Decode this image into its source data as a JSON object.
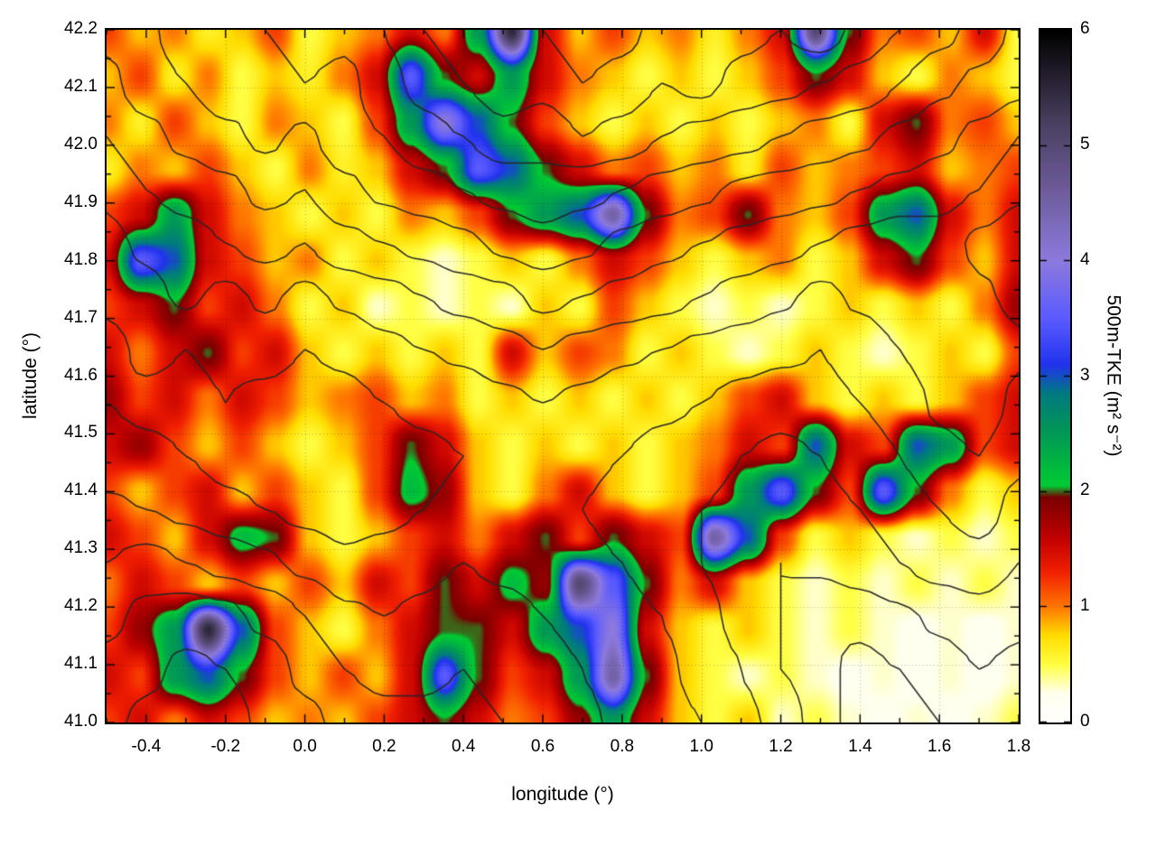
{
  "figure": {
    "background": "#ffffff"
  },
  "chart_data": {
    "type": "heatmap",
    "title": "",
    "xlabel": "longitude (°)",
    "ylabel": "latitude (°)",
    "x_range": [
      -0.5,
      1.8
    ],
    "y_range": [
      41.0,
      42.2
    ],
    "x_ticks": [
      -0.4,
      -0.2,
      0.0,
      0.2,
      0.4,
      0.6,
      0.8,
      1.0,
      1.2,
      1.4,
      1.6,
      1.8
    ],
    "x_tick_labels": [
      "-0.4",
      "-0.2",
      "0.0",
      "0.2",
      "0.4",
      "0.6",
      "0.8",
      "1.0",
      "1.2",
      "1.4",
      "1.6",
      "1.8"
    ],
    "y_ticks": [
      41.0,
      41.1,
      41.2,
      41.3,
      41.4,
      41.5,
      41.6,
      41.7,
      41.8,
      41.9,
      42.0,
      42.1,
      42.2
    ],
    "y_tick_labels": [
      "41.0",
      "41.1",
      "41.2",
      "41.3",
      "41.4",
      "41.5",
      "41.6",
      "41.7",
      "41.8",
      "41.9",
      "42.0",
      "42.1",
      "42.2"
    ],
    "grid_lines": "dotted",
    "legend_position": "colorbar-right",
    "colorbar": {
      "label": "500m-TKE (m² s⁻²)",
      "range": [
        0,
        6
      ],
      "ticks": [
        0,
        1,
        2,
        3,
        4,
        5,
        6
      ],
      "tick_labels": [
        "0",
        "1",
        "2",
        "3",
        "4",
        "5",
        "6"
      ]
    },
    "colormap_stops": [
      [
        0.0,
        "#ffffff"
      ],
      [
        0.25,
        "#ffffee"
      ],
      [
        0.5,
        "#ffff44"
      ],
      [
        0.75,
        "#ffdd00"
      ],
      [
        1.0,
        "#ff7700"
      ],
      [
        1.3,
        "#f22000"
      ],
      [
        1.6,
        "#c00000"
      ],
      [
        1.95,
        "#7a0000"
      ],
      [
        2.05,
        "#00cc33"
      ],
      [
        2.5,
        "#009955"
      ],
      [
        2.85,
        "#007a80"
      ],
      [
        3.1,
        "#2233ee"
      ],
      [
        3.5,
        "#5b5bff"
      ],
      [
        4.0,
        "#8d7ade"
      ],
      [
        4.6,
        "#6f5c9c"
      ],
      [
        5.2,
        "#4a3f60"
      ],
      [
        6.0,
        "#000000"
      ]
    ],
    "tke_grid": {
      "description": "500m turbulent kinetic energy (m2 s-2), row-major; rows from north (42.2°) to south (41.0°), columns from west (-0.5°) to east (1.8°); values estimated from the plot",
      "nx": 28,
      "ny": 16,
      "values": [
        [
          1.2,
          0.8,
          1.0,
          0.6,
          0.8,
          1.2,
          0.5,
          0.8,
          1.0,
          1.5,
          1.0,
          2.5,
          5.5,
          1.5,
          0.8,
          1.2,
          0.8,
          1.0,
          0.6,
          1.0,
          1.5,
          5.0,
          2.0,
          1.0,
          1.2,
          0.8,
          1.5,
          0.5
        ],
        [
          0.8,
          1.2,
          0.6,
          1.0,
          0.5,
          0.8,
          0.6,
          1.0,
          1.5,
          3.5,
          2.0,
          1.5,
          2.5,
          1.5,
          1.0,
          0.8,
          0.5,
          0.8,
          0.5,
          0.8,
          1.2,
          2.0,
          1.5,
          0.8,
          0.5,
          1.0,
          0.8,
          0.5
        ],
        [
          1.0,
          0.6,
          1.2,
          0.8,
          0.5,
          1.0,
          0.8,
          0.5,
          1.2,
          2.5,
          4.0,
          3.0,
          2.0,
          1.2,
          0.8,
          0.5,
          0.8,
          0.5,
          0.8,
          0.5,
          0.8,
          1.0,
          0.5,
          1.5,
          2.0,
          1.0,
          1.2,
          0.8
        ],
        [
          0.6,
          1.0,
          0.8,
          1.2,
          0.8,
          0.5,
          1.0,
          0.6,
          0.8,
          1.5,
          2.0,
          3.5,
          3.0,
          2.0,
          1.5,
          1.0,
          1.2,
          0.8,
          1.0,
          0.6,
          1.2,
          0.8,
          1.0,
          1.2,
          1.5,
          0.8,
          1.0,
          1.2
        ],
        [
          1.2,
          1.5,
          2.5,
          1.5,
          1.0,
          0.8,
          0.5,
          0.8,
          0.5,
          1.0,
          0.8,
          1.2,
          2.0,
          2.5,
          3.0,
          4.5,
          2.0,
          1.0,
          1.2,
          2.0,
          1.0,
          0.8,
          1.2,
          2.5,
          3.0,
          1.5,
          1.0,
          1.5
        ],
        [
          1.5,
          3.5,
          3.0,
          1.5,
          1.2,
          0.8,
          1.0,
          0.5,
          0.8,
          0.5,
          0.3,
          0.5,
          0.8,
          0.5,
          1.0,
          1.5,
          1.2,
          0.8,
          0.5,
          0.8,
          1.0,
          0.5,
          0.8,
          1.5,
          2.0,
          1.2,
          0.8,
          1.5
        ],
        [
          1.2,
          1.5,
          2.0,
          1.2,
          1.5,
          1.0,
          0.5,
          0.8,
          0.3,
          0.5,
          0.3,
          0.5,
          0.3,
          0.8,
          0.5,
          1.2,
          0.8,
          0.5,
          0.3,
          0.5,
          0.3,
          0.5,
          0.8,
          0.5,
          0.8,
          0.5,
          1.0,
          1.8
        ],
        [
          1.5,
          1.0,
          1.5,
          2.0,
          1.2,
          1.5,
          0.8,
          0.5,
          0.8,
          0.5,
          0.8,
          0.5,
          1.5,
          0.8,
          1.2,
          1.0,
          0.5,
          0.8,
          0.5,
          0.3,
          0.5,
          0.8,
          0.5,
          0.3,
          0.5,
          0.8,
          0.5,
          1.2
        ],
        [
          1.8,
          1.2,
          1.5,
          1.0,
          1.5,
          1.2,
          0.8,
          1.0,
          1.2,
          0.8,
          1.0,
          0.5,
          0.8,
          0.5,
          0.8,
          0.5,
          0.8,
          0.5,
          0.8,
          1.2,
          1.5,
          0.8,
          0.5,
          0.8,
          0.5,
          0.8,
          1.2,
          1.5
        ],
        [
          1.5,
          1.8,
          1.2,
          0.8,
          1.2,
          0.8,
          0.5,
          0.8,
          1.2,
          2.0,
          1.5,
          0.8,
          0.5,
          0.8,
          0.5,
          0.8,
          0.5,
          0.8,
          1.0,
          1.5,
          1.2,
          3.0,
          1.5,
          1.2,
          3.0,
          2.5,
          1.2,
          1.5
        ],
        [
          1.2,
          0.8,
          1.2,
          1.5,
          0.8,
          1.2,
          0.8,
          0.5,
          1.2,
          2.2,
          1.8,
          0.8,
          0.5,
          1.0,
          1.5,
          0.8,
          0.5,
          0.8,
          1.2,
          2.5,
          3.5,
          2.0,
          1.2,
          3.5,
          2.0,
          1.0,
          0.5,
          0.8
        ],
        [
          1.5,
          1.2,
          0.8,
          1.5,
          2.2,
          2.0,
          0.8,
          0.5,
          0.8,
          1.2,
          1.5,
          1.0,
          1.5,
          2.0,
          1.2,
          2.0,
          1.5,
          1.2,
          4.5,
          3.0,
          1.2,
          0.5,
          0.8,
          0.5,
          0.3,
          0.5,
          0.3,
          0.5
        ],
        [
          1.0,
          1.5,
          1.2,
          0.8,
          1.2,
          0.8,
          1.2,
          0.8,
          1.5,
          1.2,
          2.0,
          1.5,
          2.2,
          1.8,
          5.0,
          3.5,
          2.0,
          1.0,
          1.5,
          0.8,
          0.5,
          0.3,
          0.5,
          0.3,
          0.5,
          0.3,
          0.5,
          0.3
        ],
        [
          1.2,
          1.8,
          2.5,
          5.5,
          3.0,
          1.2,
          0.8,
          0.5,
          1.0,
          1.5,
          2.0,
          2.0,
          1.5,
          2.5,
          3.0,
          4.0,
          1.5,
          0.8,
          0.5,
          0.8,
          0.5,
          0.3,
          0.5,
          0.3,
          0.2,
          0.3,
          0.2,
          0.3
        ],
        [
          1.5,
          1.2,
          2.5,
          3.0,
          2.0,
          1.2,
          0.8,
          1.2,
          0.8,
          1.5,
          3.5,
          2.0,
          1.2,
          1.5,
          2.5,
          4.5,
          2.0,
          0.8,
          0.5,
          0.3,
          0.5,
          0.3,
          0.2,
          0.3,
          0.2,
          0.3,
          0.2,
          0.3
        ],
        [
          1.2,
          1.5,
          1.0,
          1.5,
          1.2,
          0.8,
          1.0,
          0.8,
          1.2,
          1.5,
          2.0,
          1.5,
          1.0,
          1.2,
          1.8,
          2.5,
          1.5,
          0.8,
          0.5,
          0.8,
          0.3,
          0.5,
          0.3,
          0.2,
          0.3,
          0.2,
          0.3,
          0.5
        ]
      ]
    },
    "terrain_contours": {
      "description": "Overlaid orography contour lines (black), elevation grid estimated; rows north (42.2°) to south (41.0°)",
      "levels_m": [
        200,
        240,
        300,
        380,
        480,
        600,
        750,
        950,
        1200,
        1500,
        1800,
        2100
      ],
      "elevation_grid": {
        "nx": 24,
        "ny": 14,
        "values": [
          [
            800,
            900,
            1100,
            1000,
            1200,
            1400,
            1300,
            1500,
            1800,
            2000,
            1900,
            2100,
            2300,
            2200,
            2000,
            2100,
            1900,
            1800,
            2000,
            1700,
            1500,
            1300,
            1100,
            900
          ],
          [
            700,
            850,
            950,
            1100,
            1000,
            1200,
            1100,
            1400,
            1600,
            1800,
            2000,
            1900,
            2100,
            2000,
            1800,
            1900,
            1700,
            1600,
            1500,
            1400,
            1200,
            1000,
            900,
            800
          ],
          [
            600,
            700,
            800,
            900,
            1000,
            900,
            1100,
            1200,
            1400,
            1500,
            1700,
            1600,
            1800,
            1700,
            1500,
            1400,
            1300,
            1200,
            1100,
            1000,
            900,
            800,
            700,
            600
          ],
          [
            500,
            600,
            650,
            700,
            800,
            750,
            900,
            1000,
            1100,
            1200,
            1300,
            1400,
            1300,
            1200,
            1100,
            1000,
            900,
            850,
            800,
            750,
            700,
            650,
            600,
            500
          ],
          [
            450,
            500,
            550,
            600,
            650,
            600,
            700,
            750,
            800,
            900,
            1000,
            1100,
            1000,
            900,
            800,
            750,
            700,
            650,
            600,
            550,
            500,
            550,
            450,
            400
          ],
          [
            400,
            450,
            500,
            450,
            500,
            450,
            500,
            550,
            600,
            650,
            700,
            800,
            750,
            700,
            650,
            600,
            550,
            500,
            450,
            500,
            550,
            600,
            500,
            450
          ],
          [
            350,
            400,
            380,
            400,
            420,
            380,
            400,
            450,
            480,
            500,
            550,
            600,
            550,
            500,
            480,
            450,
            420,
            400,
            380,
            420,
            480,
            550,
            600,
            500
          ],
          [
            380,
            360,
            350,
            380,
            350,
            330,
            350,
            380,
            400,
            420,
            450,
            480,
            450,
            420,
            400,
            380,
            350,
            330,
            350,
            380,
            420,
            500,
            550,
            450
          ],
          [
            420,
            400,
            380,
            350,
            330,
            300,
            320,
            340,
            360,
            380,
            400,
            420,
            400,
            380,
            350,
            330,
            300,
            280,
            300,
            330,
            380,
            450,
            480,
            400
          ],
          [
            500,
            480,
            450,
            400,
            380,
            350,
            330,
            350,
            380,
            400,
            380,
            400,
            380,
            350,
            330,
            300,
            280,
            260,
            280,
            300,
            330,
            380,
            420,
            350
          ],
          [
            600,
            650,
            600,
            550,
            500,
            450,
            400,
            420,
            450,
            480,
            450,
            430,
            400,
            380,
            350,
            300,
            260,
            240,
            250,
            270,
            300,
            330,
            350,
            300
          ],
          [
            700,
            800,
            850,
            800,
            700,
            600,
            500,
            480,
            500,
            550,
            520,
            480,
            450,
            400,
            380,
            320,
            280,
            240,
            200,
            210,
            230,
            250,
            270,
            250
          ],
          [
            800,
            900,
            1000,
            950,
            850,
            700,
            600,
            550,
            580,
            600,
            560,
            520,
            480,
            430,
            400,
            350,
            300,
            240,
            210,
            190,
            200,
            220,
            240,
            230
          ],
          [
            900,
            1000,
            1100,
            1050,
            900,
            800,
            700,
            650,
            620,
            640,
            600,
            560,
            500,
            460,
            420,
            380,
            320,
            280,
            210,
            190,
            180,
            200,
            220,
            210
          ]
        ]
      }
    }
  }
}
